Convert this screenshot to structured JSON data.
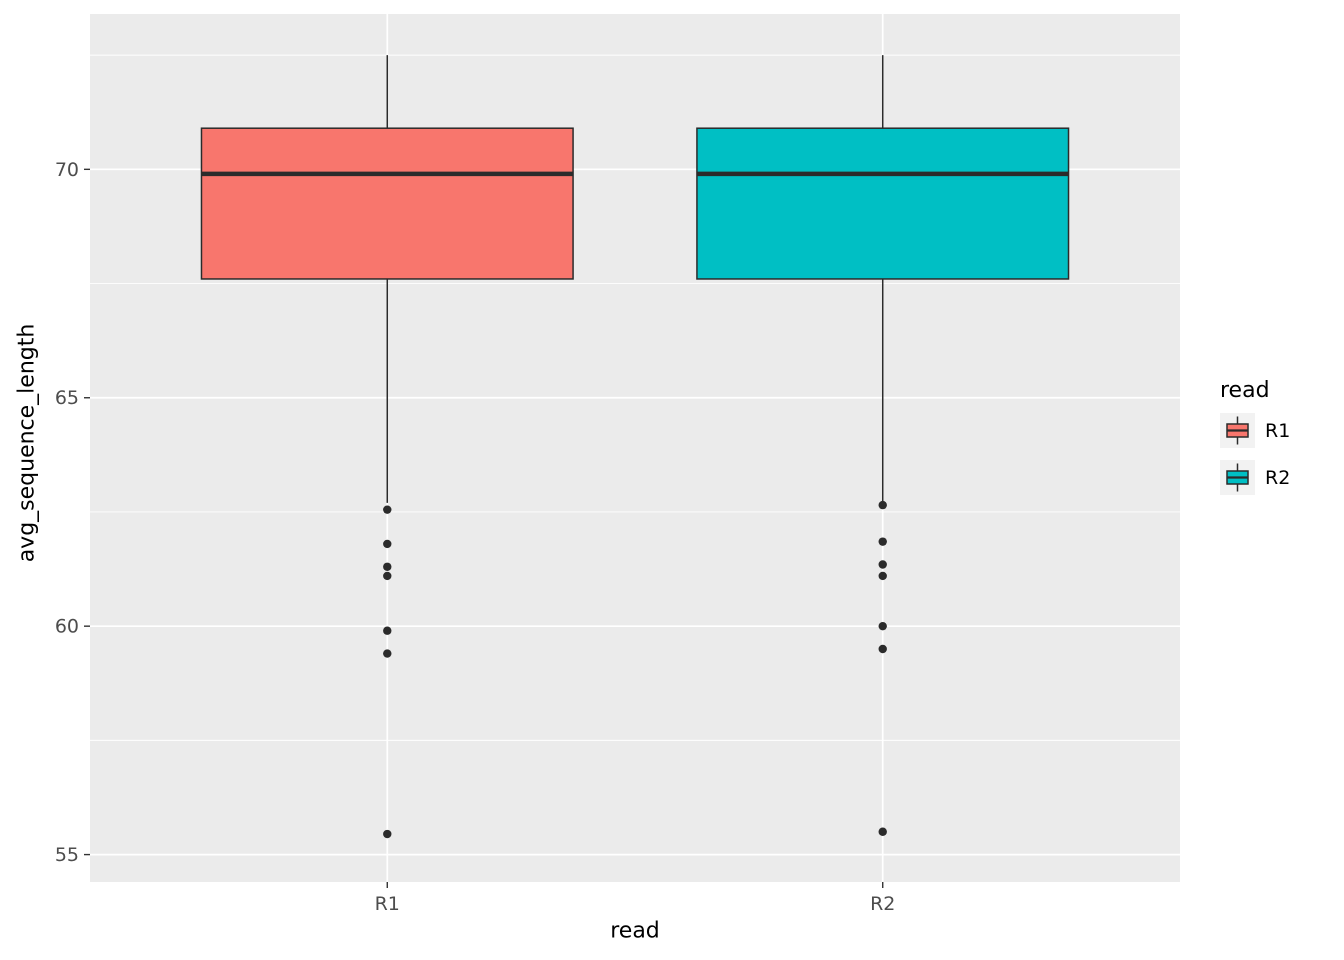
{
  "figure": {
    "background": "#FFFFFF",
    "panel_background": "#EBEBEB",
    "grid_major_color": "#FFFFFF",
    "grid_minor_color": "#FFFFFF",
    "box_stroke_color": "#2B2B2B",
    "outlier_color": "#2B2B2B",
    "tick_mark_color": "#333333",
    "axis_text_color": "#4D4D4D",
    "axis_title_color": "#000000",
    "legend_key_background": "#F2F2F2"
  },
  "chart_data": {
    "type": "boxplot",
    "title": "",
    "xlabel": "read",
    "ylabel": "avg_sequence_length",
    "categories": [
      "R1",
      "R2"
    ],
    "y_ticks": [
      55,
      60,
      65,
      70
    ],
    "y_minor_ticks": [
      57.5,
      62.5,
      67.5,
      72.5
    ],
    "ylim": [
      54.4,
      73.4
    ],
    "grid": true,
    "series": [
      {
        "name": "R1",
        "color": "#F8766D",
        "stats": {
          "whisker_low": 62.7,
          "q1": 67.6,
          "median": 69.9,
          "q3": 70.9,
          "whisker_high": 72.5
        },
        "outliers": [
          62.55,
          61.8,
          61.3,
          61.1,
          59.9,
          59.4,
          55.45
        ]
      },
      {
        "name": "R2",
        "color": "#00BFC4",
        "stats": {
          "whisker_low": 62.7,
          "q1": 67.6,
          "median": 69.9,
          "q3": 70.9,
          "whisker_high": 72.5
        },
        "outliers": [
          62.65,
          61.85,
          61.35,
          61.1,
          60.0,
          59.5,
          55.5
        ]
      }
    ],
    "legend": {
      "title": "read",
      "position": "right"
    }
  }
}
